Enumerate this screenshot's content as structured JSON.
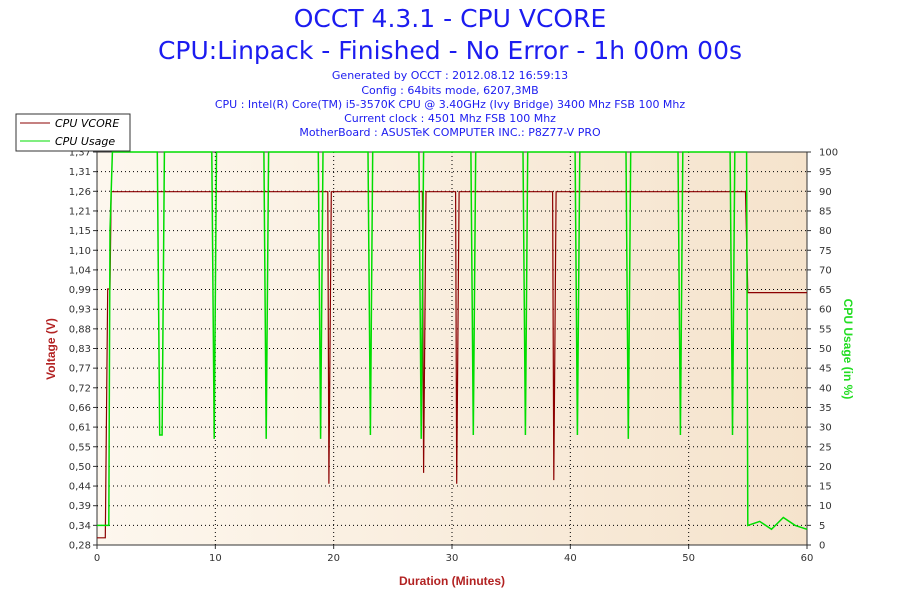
{
  "header": {
    "title": "OCCT 4.3.1 - CPU VCORE",
    "subtitle": "CPU:Linpack - Finished - No Error - 1h 00m 00s",
    "info": [
      "Generated by OCCT : 2012.08.12 16:59:13",
      "Config : 64bits mode, 6207,3MB",
      "CPU : Intel(R) Core(TM) i5-3570K CPU @ 3.40GHz (Ivy Bridge) 3400 Mhz FSB 100 Mhz",
      "Current clock : 4501 Mhz FSB 100 Mhz",
      "MotherBoard : ASUSTeK COMPUTER INC.: P8Z77-V PRO"
    ]
  },
  "chart_data": {
    "type": "line",
    "xlabel": "Duration (Minutes)",
    "ylabel": "Voltage (V)",
    "y2label": "CPU Usage (in %)",
    "xlim": [
      0,
      60
    ],
    "ylim": [
      0.28,
      1.37
    ],
    "y2lim": [
      0,
      100
    ],
    "x_ticks": [
      "0",
      "10",
      "20",
      "30",
      "40",
      "50",
      "60"
    ],
    "y_ticks": [
      "0,28",
      "0,34",
      "0,39",
      "0,44",
      "0,50",
      "0,55",
      "0,61",
      "0,66",
      "0,72",
      "0,77",
      "0,83",
      "0,88",
      "0,93",
      "0,99",
      "1,04",
      "1,10",
      "1,15",
      "1,21",
      "1,26",
      "1,31",
      "1,37"
    ],
    "y2_ticks": [
      "0",
      "5",
      "10",
      "15",
      "20",
      "25",
      "30",
      "35",
      "40",
      "45",
      "50",
      "55",
      "60",
      "65",
      "70",
      "75",
      "80",
      "85",
      "90",
      "95",
      "100"
    ],
    "legend": [
      "CPU VCORE",
      "CPU Usage"
    ],
    "legend_position": "top-left",
    "colors": {
      "vcore": "#8b0000",
      "usage": "#00dd00",
      "title": "#1c1cf0",
      "plot_bg": "#fdf5e8",
      "plot_bg_end": "#f5e3cc"
    },
    "series": [
      {
        "name": "CPU VCORE",
        "x": [
          0,
          0.7,
          0.9,
          1.0,
          1.1,
          1.2,
          2,
          10,
          19.5,
          19.6,
          19.8,
          20,
          27.5,
          27.6,
          27.8,
          28,
          30.3,
          30.4,
          30.6,
          31,
          38.5,
          38.6,
          38.8,
          39,
          54.5,
          54.8,
          55,
          56,
          58,
          60
        ],
        "values": [
          0.3,
          0.3,
          0.99,
          0.99,
          0.99,
          1.26,
          1.26,
          1.26,
          1.26,
          0.45,
          1.26,
          1.26,
          1.26,
          0.48,
          1.26,
          1.26,
          1.26,
          0.45,
          1.26,
          1.26,
          1.26,
          0.46,
          1.26,
          1.26,
          1.26,
          1.26,
          0.98,
          0.98,
          0.98,
          0.98
        ]
      },
      {
        "name": "CPU Usage",
        "x": [
          0,
          1.0,
          1.1,
          1.3,
          5.1,
          5.3,
          5.5,
          5.7,
          9.7,
          9.9,
          10.1,
          14.1,
          14.3,
          14.5,
          18.7,
          18.9,
          19.1,
          22.9,
          23.1,
          23.3,
          27.2,
          27.4,
          27.6,
          31.6,
          31.8,
          32.0,
          36.0,
          36.2,
          36.4,
          40.4,
          40.6,
          40.8,
          44.7,
          44.9,
          45.1,
          49.1,
          49.3,
          49.5,
          53.5,
          53.7,
          53.9,
          54.9,
          55.0,
          56,
          57,
          58,
          59,
          60
        ],
        "values": [
          5,
          5,
          80,
          100,
          100,
          28,
          28,
          100,
          100,
          27,
          100,
          100,
          27,
          100,
          100,
          27,
          100,
          100,
          28,
          100,
          100,
          27,
          100,
          100,
          28,
          100,
          100,
          28,
          100,
          100,
          28,
          100,
          100,
          27,
          100,
          100,
          28,
          100,
          100,
          28,
          100,
          100,
          5,
          6,
          4,
          7,
          5,
          4
        ]
      }
    ]
  }
}
